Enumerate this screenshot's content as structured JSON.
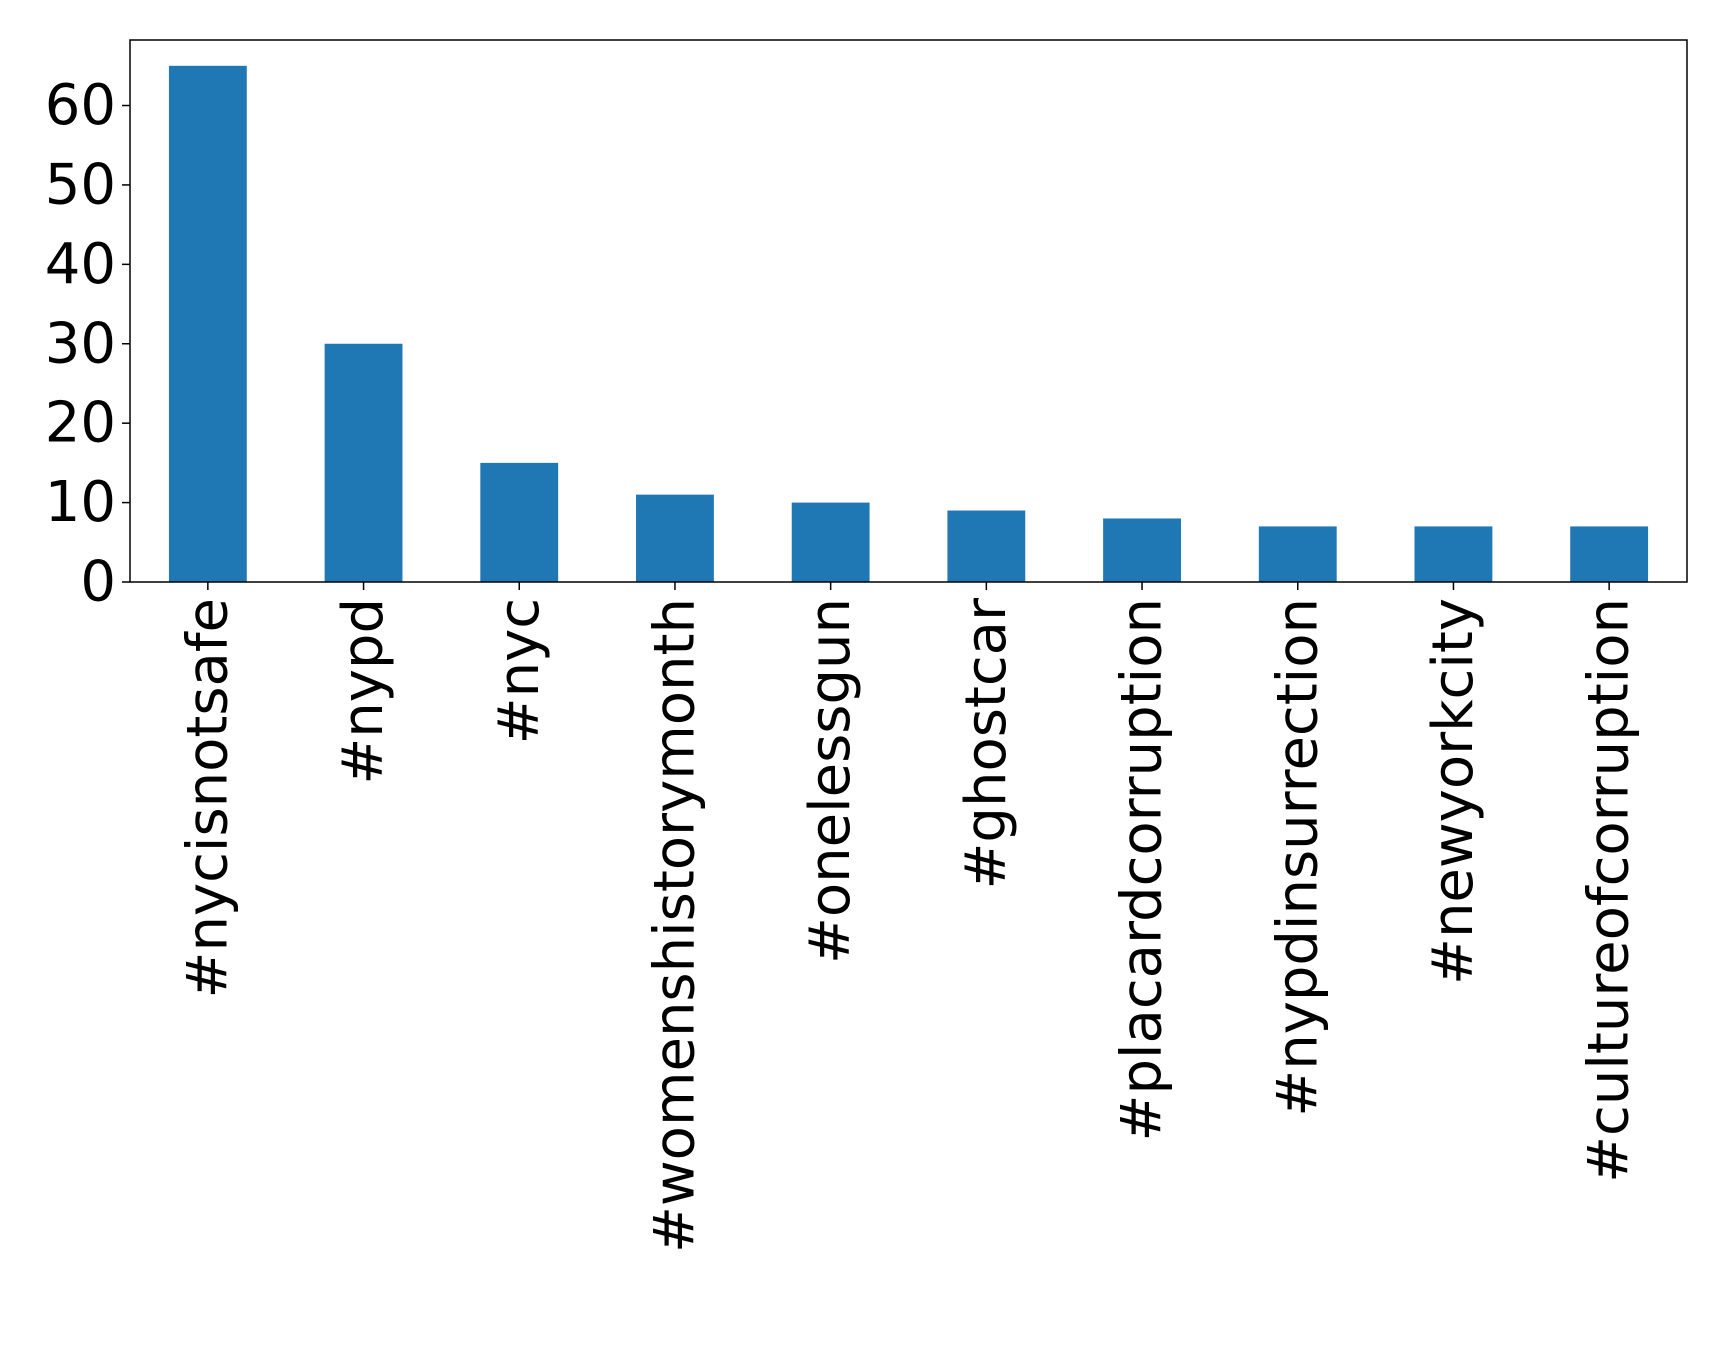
{
  "chart_data": {
    "type": "bar",
    "title": "",
    "xlabel": "",
    "ylabel": "",
    "categories": [
      "#nycisnotsafe",
      "#nypd",
      "#nyc",
      "#womenshistorymonth",
      "#onelessgun",
      "#ghostcar",
      "#placardcorruption",
      "#nypdinsurrection",
      "#newyorkcity",
      "#cultureofcorruption"
    ],
    "values": [
      65,
      30,
      15,
      11,
      10,
      9,
      8,
      7,
      7,
      7
    ],
    "ylim": [
      0,
      68.25
    ],
    "yticks": [
      0,
      10,
      20,
      30,
      40,
      50,
      60
    ],
    "grid": false,
    "legend": "none",
    "bar_color": "#1f77b4"
  }
}
